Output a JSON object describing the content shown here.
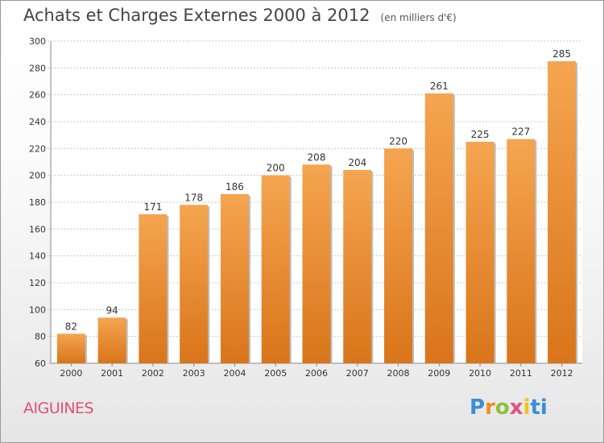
{
  "title": "Achats et Charges Externes 2000 à 2012",
  "subtitle": "(en milliers d'€)",
  "commune": "AIGUINES",
  "logo": "Proxiti",
  "colors": {
    "bar_top": "#f5a550",
    "bar_bottom": "#d9751a",
    "title": "#444444",
    "commune": "#e0507a"
  },
  "chart_data": {
    "type": "bar",
    "categories": [
      "2000",
      "2001",
      "2002",
      "2003",
      "2004",
      "2005",
      "2006",
      "2007",
      "2008",
      "2009",
      "2010",
      "2011",
      "2012"
    ],
    "values": [
      82,
      94,
      171,
      178,
      186,
      200,
      208,
      204,
      220,
      261,
      225,
      227,
      285
    ],
    "ylim": [
      60,
      300
    ],
    "yticks": [
      60,
      80,
      100,
      120,
      140,
      160,
      180,
      200,
      220,
      240,
      260,
      280,
      300
    ],
    "grid": true,
    "data_labels": true
  }
}
